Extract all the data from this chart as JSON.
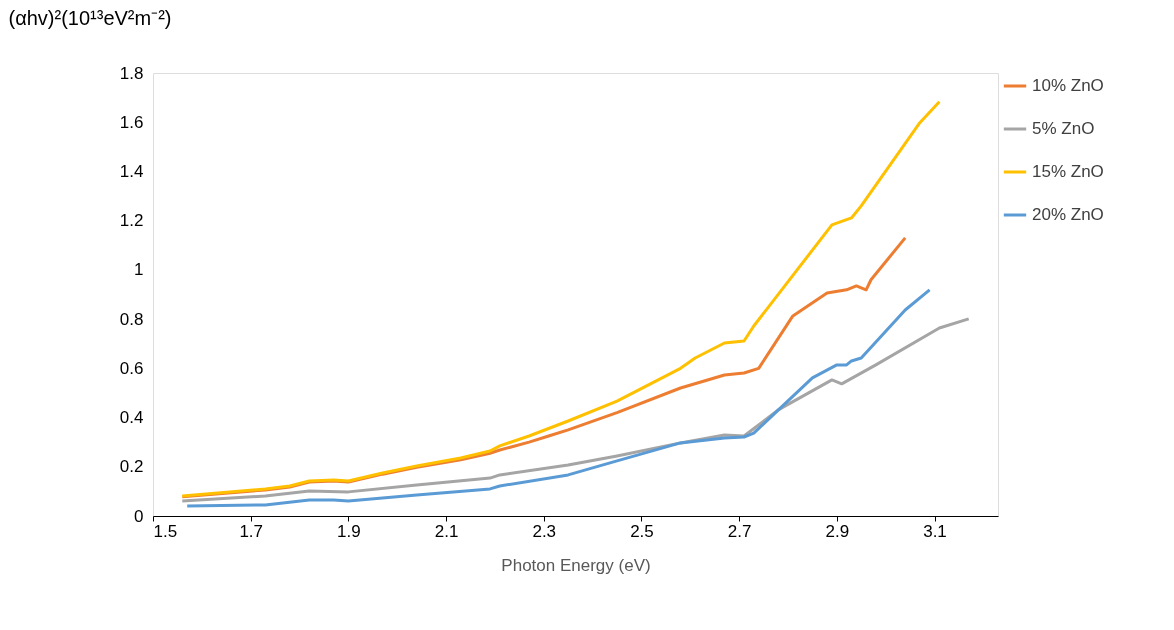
{
  "chart_data": {
    "type": "line",
    "ylabel": "(αhv)²(10¹³eV²m⁻²)",
    "xlabel": "Photon Energy (eV)",
    "xlim": [
      1.5,
      3.23
    ],
    "xticks": [
      1.5,
      1.7,
      1.9,
      2.1,
      2.3,
      2.5,
      2.7,
      2.9,
      3.1
    ],
    "ylim": [
      0,
      1.8
    ],
    "yticks": [
      0,
      0.2,
      0.4,
      0.6,
      0.8,
      1,
      1.2,
      1.4,
      1.6,
      1.8
    ],
    "grid": false,
    "legend": "right",
    "line_style": "solid",
    "marker": "none",
    "series": [
      {
        "name": "10% ZnO",
        "color": "#ed7d31",
        "x": [
          1.56,
          1.73,
          1.78,
          1.82,
          1.87,
          1.9,
          1.97,
          2.04,
          2.13,
          2.19,
          2.21,
          2.27,
          2.31,
          2.35,
          2.45,
          2.58,
          2.67,
          2.71,
          2.74,
          2.81,
          2.88,
          2.92,
          2.94,
          2.96,
          2.97,
          3.04
        ],
        "values": [
          0.078,
          0.106,
          0.118,
          0.138,
          0.142,
          0.138,
          0.17,
          0.198,
          0.228,
          0.255,
          0.268,
          0.3,
          0.325,
          0.35,
          0.42,
          0.52,
          0.573,
          0.581,
          0.6,
          0.813,
          0.906,
          0.919,
          0.935,
          0.919,
          0.96,
          1.13
        ]
      },
      {
        "name": "5% ZnO",
        "color": "#a5a5a5",
        "x": [
          1.56,
          1.73,
          1.82,
          1.9,
          2.04,
          2.19,
          2.21,
          2.35,
          2.45,
          2.58,
          2.67,
          2.71,
          2.78,
          2.89,
          2.91,
          2.98,
          3.11,
          3.17
        ],
        "values": [
          0.061,
          0.081,
          0.102,
          0.098,
          0.126,
          0.154,
          0.167,
          0.207,
          0.244,
          0.297,
          0.329,
          0.325,
          0.431,
          0.553,
          0.537,
          0.614,
          0.764,
          0.801
        ]
      },
      {
        "name": "15% ZnO",
        "color": "#ffc000",
        "x": [
          1.56,
          1.73,
          1.78,
          1.82,
          1.87,
          1.9,
          1.97,
          2.04,
          2.13,
          2.19,
          2.21,
          2.27,
          2.35,
          2.45,
          2.58,
          2.61,
          2.67,
          2.71,
          2.73,
          2.89,
          2.93,
          2.95,
          3.07,
          3.11
        ],
        "values": [
          0.081,
          0.11,
          0.122,
          0.142,
          0.146,
          0.142,
          0.175,
          0.203,
          0.236,
          0.264,
          0.285,
          0.325,
          0.386,
          0.467,
          0.6,
          0.642,
          0.703,
          0.711,
          0.772,
          1.183,
          1.211,
          1.26,
          1.598,
          1.683
        ]
      },
      {
        "name": "20% ZnO",
        "color": "#5b9bd5",
        "x": [
          1.57,
          1.73,
          1.82,
          1.87,
          1.9,
          2.04,
          2.19,
          2.21,
          2.35,
          2.45,
          2.58,
          2.67,
          2.71,
          2.73,
          2.85,
          2.9,
          2.92,
          2.93,
          2.95,
          3.04,
          3.09
        ],
        "values": [
          0.041,
          0.045,
          0.065,
          0.065,
          0.061,
          0.085,
          0.11,
          0.122,
          0.167,
          0.224,
          0.297,
          0.317,
          0.321,
          0.337,
          0.561,
          0.614,
          0.614,
          0.63,
          0.642,
          0.837,
          0.919
        ]
      }
    ]
  }
}
